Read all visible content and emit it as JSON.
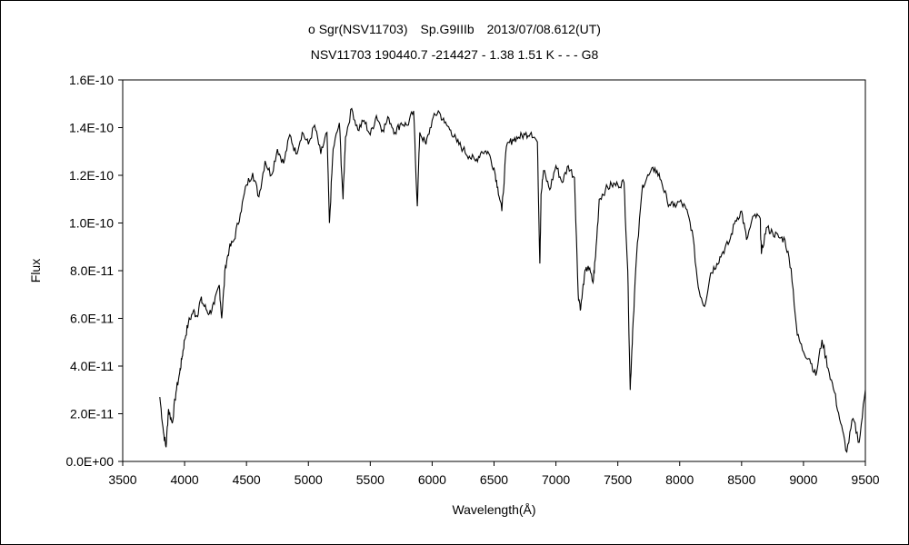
{
  "chart_data": {
    "type": "line",
    "title": "ο Sgr(NSV11703)　Sp.G9IIIb　2013/07/08.612(UT)",
    "subtitle": "NSV11703 190440.7 -214427 - 1.38 1.51 K - - - G8",
    "xlabel": "Wavelength(Å)",
    "ylabel": "Flux",
    "xlim": [
      3500,
      9500
    ],
    "ylim": [
      0,
      1.6e-10
    ],
    "x_ticks": [
      "3500",
      "4000",
      "4500",
      "5000",
      "5500",
      "6000",
      "6500",
      "7000",
      "7500",
      "8000",
      "8500",
      "9000",
      "9500"
    ],
    "y_ticks": [
      "0.0E+00",
      "2.0E-11",
      "4.0E-11",
      "6.0E-11",
      "8.0E-11",
      "1.0E-10",
      "1.2E-10",
      "1.4E-10",
      "1.6E-10"
    ],
    "grid": false,
    "legend": "none",
    "color": "#000000",
    "series": [
      {
        "points": [
          [
            3800,
            2.7e-11
          ],
          [
            3830,
            1.2e-11
          ],
          [
            3850,
            6e-12
          ],
          [
            3870,
            2.2e-11
          ],
          [
            3900,
            1.6e-11
          ],
          [
            3930,
            2.9e-11
          ],
          [
            3960,
            3.7e-11
          ],
          [
            3980,
            4.4e-11
          ],
          [
            4000,
            5.1e-11
          ],
          [
            4030,
            5.8e-11
          ],
          [
            4070,
            6.3e-11
          ],
          [
            4100,
            6.1e-11
          ],
          [
            4130,
            6.8e-11
          ],
          [
            4160,
            6.5e-11
          ],
          [
            4200,
            6.2e-11
          ],
          [
            4240,
            6.6e-11
          ],
          [
            4280,
            7.4e-11
          ],
          [
            4300,
            6e-11
          ],
          [
            4330,
            8.2e-11
          ],
          [
            4360,
            8.9e-11
          ],
          [
            4400,
            9.3e-11
          ],
          [
            4450,
            1.04e-10
          ],
          [
            4500,
            1.16e-10
          ],
          [
            4550,
            1.21e-10
          ],
          [
            4600,
            1.11e-10
          ],
          [
            4650,
            1.26e-10
          ],
          [
            4700,
            1.2e-10
          ],
          [
            4750,
            1.31e-10
          ],
          [
            4800,
            1.25e-10
          ],
          [
            4850,
            1.37e-10
          ],
          [
            4900,
            1.29e-10
          ],
          [
            4950,
            1.38e-10
          ],
          [
            5000,
            1.33e-10
          ],
          [
            5050,
            1.41e-10
          ],
          [
            5100,
            1.29e-10
          ],
          [
            5150,
            1.38e-10
          ],
          [
            5170,
            1e-10
          ],
          [
            5200,
            1.31e-10
          ],
          [
            5250,
            1.42e-10
          ],
          [
            5280,
            1.1e-10
          ],
          [
            5300,
            1.36e-10
          ],
          [
            5350,
            1.48e-10
          ],
          [
            5400,
            1.39e-10
          ],
          [
            5450,
            1.43e-10
          ],
          [
            5500,
            1.37e-10
          ],
          [
            5550,
            1.45e-10
          ],
          [
            5600,
            1.39e-10
          ],
          [
            5650,
            1.44e-10
          ],
          [
            5700,
            1.38e-10
          ],
          [
            5750,
            1.42e-10
          ],
          [
            5800,
            1.41e-10
          ],
          [
            5850,
            1.47e-10
          ],
          [
            5880,
            1.07e-10
          ],
          [
            5900,
            1.38e-10
          ],
          [
            5950,
            1.33e-10
          ],
          [
            6000,
            1.43e-10
          ],
          [
            6050,
            1.47e-10
          ],
          [
            6100,
            1.42e-10
          ],
          [
            6150,
            1.39e-10
          ],
          [
            6200,
            1.34e-10
          ],
          [
            6250,
            1.31e-10
          ],
          [
            6300,
            1.28e-10
          ],
          [
            6350,
            1.26e-10
          ],
          [
            6400,
            1.3e-10
          ],
          [
            6450,
            1.3e-10
          ],
          [
            6500,
            1.23e-10
          ],
          [
            6530,
            1.15e-10
          ],
          [
            6563,
            1.05e-10
          ],
          [
            6600,
            1.32e-10
          ],
          [
            6650,
            1.35e-10
          ],
          [
            6700,
            1.36e-10
          ],
          [
            6750,
            1.37e-10
          ],
          [
            6800,
            1.38e-10
          ],
          [
            6850,
            1.34e-10
          ],
          [
            6870,
            8.3e-11
          ],
          [
            6880,
            1.12e-10
          ],
          [
            6900,
            1.22e-10
          ],
          [
            6950,
            1.14e-10
          ],
          [
            7000,
            1.24e-10
          ],
          [
            7050,
            1.17e-10
          ],
          [
            7100,
            1.24e-10
          ],
          [
            7150,
            1.19e-10
          ],
          [
            7180,
            7e-11
          ],
          [
            7200,
            6.4e-11
          ],
          [
            7230,
            7.8e-11
          ],
          [
            7260,
            8.2e-11
          ],
          [
            7300,
            7.5e-11
          ],
          [
            7320,
            8.6e-11
          ],
          [
            7350,
            1.1e-10
          ],
          [
            7400,
            1.14e-10
          ],
          [
            7450,
            1.16e-10
          ],
          [
            7500,
            1.16e-10
          ],
          [
            7550,
            1.17e-10
          ],
          [
            7580,
            8e-11
          ],
          [
            7600,
            3e-11
          ],
          [
            7620,
            5.5e-11
          ],
          [
            7650,
            8.5e-11
          ],
          [
            7700,
            1.16e-10
          ],
          [
            7750,
            1.2e-10
          ],
          [
            7800,
            1.23e-10
          ],
          [
            7850,
            1.18e-10
          ],
          [
            7900,
            1.09e-10
          ],
          [
            7950,
            1.07e-10
          ],
          [
            8000,
            1.09e-10
          ],
          [
            8050,
            1.06e-10
          ],
          [
            8100,
            9.7e-11
          ],
          [
            8150,
            7.3e-11
          ],
          [
            8200,
            6.5e-11
          ],
          [
            8250,
            7.9e-11
          ],
          [
            8300,
            8.3e-11
          ],
          [
            8350,
            8.8e-11
          ],
          [
            8400,
            9.2e-11
          ],
          [
            8450,
            1.01e-10
          ],
          [
            8500,
            1.05e-10
          ],
          [
            8540,
            9.3e-11
          ],
          [
            8600,
            1.03e-10
          ],
          [
            8650,
            1.02e-10
          ],
          [
            8660,
            8.7e-11
          ],
          [
            8700,
            9.8e-11
          ],
          [
            8750,
            9.6e-11
          ],
          [
            8800,
            9.4e-11
          ],
          [
            8850,
            9.3e-11
          ],
          [
            8900,
            8.1e-11
          ],
          [
            8950,
            5.3e-11
          ],
          [
            9000,
            4.6e-11
          ],
          [
            9050,
            4.3e-11
          ],
          [
            9100,
            3.6e-11
          ],
          [
            9150,
            5.1e-11
          ],
          [
            9200,
            3.9e-11
          ],
          [
            9250,
            2.9e-11
          ],
          [
            9300,
            1.6e-11
          ],
          [
            9350,
            4e-12
          ],
          [
            9400,
            1.8e-11
          ],
          [
            9450,
            8e-12
          ],
          [
            9500,
            3e-11
          ]
        ]
      }
    ]
  }
}
